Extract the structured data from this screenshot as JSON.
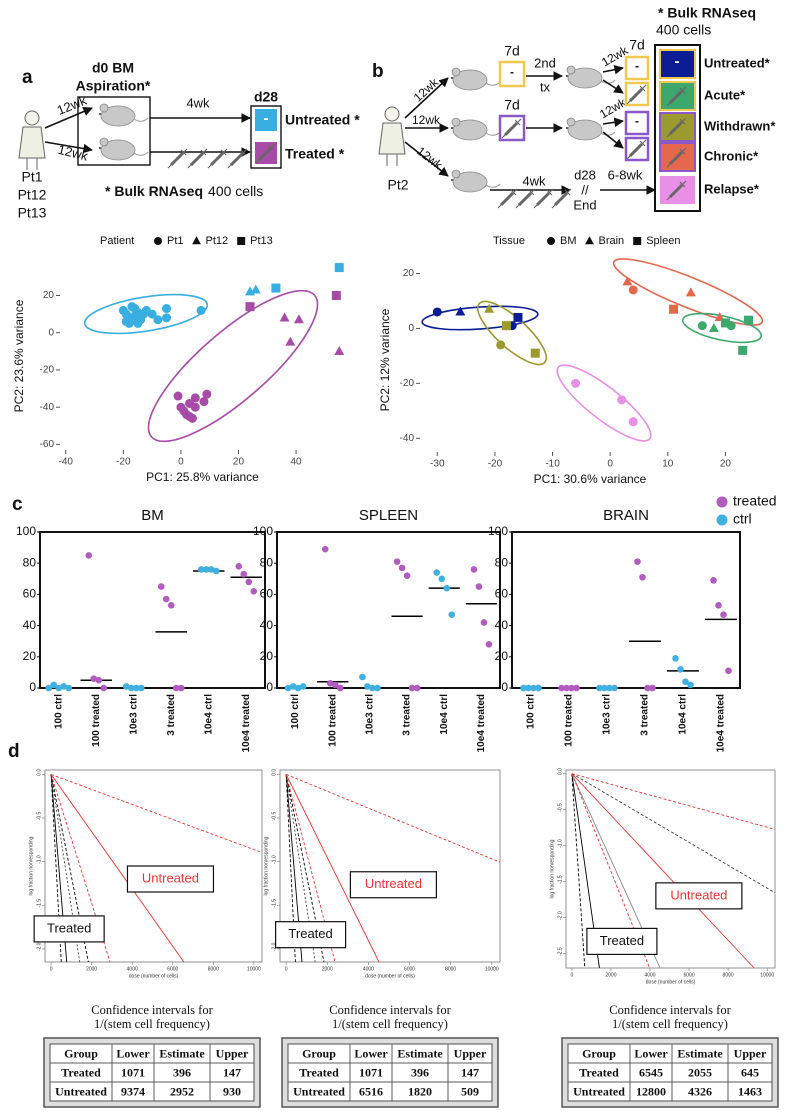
{
  "panel_labels": [
    "a",
    "b",
    "c",
    "d"
  ],
  "diagram_a": {
    "aspiration": [
      "d0 BM",
      "Aspiration*"
    ],
    "arrow_labels": [
      "12wk",
      "12wk"
    ],
    "patients": [
      "Pt1",
      "Pt12",
      "Pt13"
    ],
    "duration": "4wk",
    "day": "d28",
    "minus": "-",
    "groups": [
      "Untreated *",
      "Treated *"
    ],
    "note": [
      "* Bulk RNAseq",
      "400 cells"
    ]
  },
  "diagram_b": {
    "patient": "Pt2",
    "arrow_labels": [
      "12wk",
      "12wk",
      "12wk",
      "12wk",
      "12wk"
    ],
    "timepoints": [
      "7d",
      "7d",
      "7d"
    ],
    "second_tx": [
      "2nd",
      "tx"
    ],
    "duration": "4wk",
    "day": "d28",
    "break": "//",
    "end": "End",
    "interval": "6-8wk",
    "minus": "-",
    "note": [
      "* Bulk RNAseq",
      "400 cells"
    ],
    "groups": [
      "Untreated*",
      "Acute*",
      "Withdrawn*",
      "Chronic*",
      "Relapse*"
    ]
  },
  "chart_data": [
    {
      "type": "scatter",
      "xlabel": "PC1: 25.8% variance",
      "ylabel": "PC2: 23.6% variance",
      "xlim": [
        -42,
        57
      ],
      "xticks": [
        -40,
        -20,
        0,
        20,
        40
      ],
      "ylim": [
        -63,
        38
      ],
      "yticks": [
        -60,
        -40,
        -20,
        0,
        20
      ],
      "legend_title": "Patient",
      "series": [
        {
          "name": "Pt1",
          "marker": "circle",
          "x": [
            -20,
            -19,
            -18,
            -17,
            -16,
            -15,
            -18,
            -14,
            -13,
            -12,
            -19,
            -16,
            -10,
            -5,
            -5,
            -8,
            -17,
            -15,
            7,
            -1,
            3,
            5,
            8,
            9,
            1,
            3,
            5,
            4,
            2,
            0
          ],
          "values": [
            12,
            10,
            8,
            14,
            9,
            11,
            5,
            7,
            10,
            12,
            6,
            13,
            10,
            13,
            8,
            7,
            7,
            5,
            12,
            -34,
            -38,
            -35,
            -37,
            -33,
            -42,
            -45,
            -40,
            -46,
            -44,
            -40
          ],
          "colors": [
            "#39aee0",
            "#39aee0",
            "#39aee0",
            "#39aee0",
            "#39aee0",
            "#39aee0",
            "#39aee0",
            "#39aee0",
            "#39aee0",
            "#39aee0",
            "#39aee0",
            "#39aee0",
            "#39aee0",
            "#39aee0",
            "#39aee0",
            "#39aee0",
            "#39aee0",
            "#39aee0",
            "#39aee0",
            "#a64ca6",
            "#a64ca6",
            "#a64ca6",
            "#a64ca6",
            "#a64ca6",
            "#a64ca6",
            "#a64ca6",
            "#a64ca6",
            "#a64ca6",
            "#a64ca6",
            "#a64ca6"
          ]
        },
        {
          "name": "Pt12",
          "marker": "triangle",
          "x": [
            24,
            26,
            36,
            41,
            38,
            55
          ],
          "values": [
            22,
            23,
            8,
            7,
            -5,
            -10
          ],
          "colors": [
            "#39aee0",
            "#39aee0",
            "#a64ca6",
            "#a64ca6",
            "#a64ca6",
            "#a64ca6"
          ]
        },
        {
          "name": "Pt13",
          "marker": "square",
          "x": [
            33,
            55,
            24,
            54
          ],
          "values": [
            24,
            35,
            14,
            20
          ],
          "colors": [
            "#39aee0",
            "#39aee0",
            "#a64ca6",
            "#a64ca6"
          ]
        }
      ]
    },
    {
      "type": "scatter",
      "xlabel": "PC1: 30.6% variance",
      "ylabel": "PC2: 12% variance",
      "xlim": [
        -33,
        26
      ],
      "xticks": [
        -30,
        -20,
        -10,
        0,
        10,
        20
      ],
      "ylim": [
        -45,
        22
      ],
      "yticks": [
        -40,
        -20,
        0,
        20
      ],
      "legend_title": "Tissue",
      "series": [
        {
          "name": "BM",
          "marker": "circle",
          "x": [
            -30,
            -17,
            -19,
            -6,
            2,
            4,
            4,
            16,
            21
          ],
          "values": [
            6,
            1,
            -6,
            -20,
            -26,
            -34,
            14,
            1,
            1
          ],
          "colors": [
            "#0b1c94",
            "#0b1c94",
            "#9c9a2e",
            "#e88fe6",
            "#e88fe6",
            "#e88fe6",
            "#e5684e",
            "#3da86d",
            "#3da86d"
          ]
        },
        {
          "name": "Brain",
          "marker": "triangle",
          "x": [
            -26,
            -21,
            3,
            14,
            19,
            18
          ],
          "values": [
            6,
            7,
            17,
            13,
            4,
            0
          ],
          "colors": [
            "#0b1c94",
            "#9c9a2e",
            "#e5684e",
            "#e5684e",
            "#e5684e",
            "#3da86d"
          ]
        },
        {
          "name": "Spleen",
          "marker": "square",
          "x": [
            -16,
            -18,
            -13,
            11,
            20,
            24,
            23
          ],
          "values": [
            4,
            1,
            -9,
            7,
            2,
            3,
            -8
          ],
          "colors": [
            "#0b1c94",
            "#9c9a2e",
            "#9c9a2e",
            "#e5684e",
            "#3da86d",
            "#3da86d",
            "#3da86d"
          ]
        }
      ]
    },
    {
      "type": "dot",
      "title": "BM",
      "categories": [
        "100 ctrl",
        "100 treated",
        "10e3 ctrl",
        "3 treated",
        "10e4 ctrl",
        "10e4 treated"
      ],
      "ylim": [
        0,
        100
      ],
      "yticks": [
        0,
        20,
        40,
        60,
        80,
        100
      ],
      "means": [
        null,
        5,
        null,
        36,
        75,
        71
      ],
      "series": [
        {
          "name": "ctrl",
          "color": "#3fb0e0",
          "x": [
            "100 ctrl",
            "100 ctrl",
            "100 ctrl",
            "100 ctrl",
            "100 ctrl",
            "10e3 ctrl",
            "10e3 ctrl",
            "10e3 ctrl",
            "10e3 ctrl",
            "10e4 ctrl",
            "10e4 ctrl",
            "10e4 ctrl",
            "10e4 ctrl"
          ],
          "values": [
            0,
            2,
            0,
            1,
            0,
            1,
            0,
            0,
            0,
            76,
            76,
            76,
            75
          ]
        },
        {
          "name": "treated",
          "color": "#b25cc0",
          "x": [
            "100 treated",
            "100 treated",
            "100 treated",
            "100 treated",
            "3 treated",
            "3 treated",
            "3 treated",
            "3 treated",
            "3 treated",
            "10e4 treated",
            "10e4 treated",
            "10e4 treated",
            "10e4 treated"
          ],
          "values": [
            85,
            6,
            5,
            0,
            65,
            57,
            53,
            0,
            0,
            78,
            73,
            68,
            62
          ]
        }
      ]
    },
    {
      "type": "dot",
      "title": "SPLEEN",
      "categories": [
        "100 ctrl",
        "100 treated",
        "10e3 ctrl",
        "3 treated",
        "10e4 ctrl",
        "10e4 treated"
      ],
      "ylim": [
        0,
        100
      ],
      "yticks": [
        0,
        20,
        40,
        60,
        80,
        100
      ],
      "means": [
        null,
        4,
        null,
        46,
        64,
        54
      ],
      "series": [
        {
          "name": "ctrl",
          "color": "#3fb0e0",
          "x": [
            "100 ctrl",
            "100 ctrl",
            "100 ctrl",
            "100 ctrl",
            "10e3 ctrl",
            "10e3 ctrl",
            "10e3 ctrl",
            "10e3 ctrl",
            "10e4 ctrl",
            "10e4 ctrl",
            "10e4 ctrl",
            "10e4 ctrl"
          ],
          "values": [
            0,
            1,
            0,
            1,
            7,
            1,
            0,
            0,
            74,
            70,
            64,
            47
          ]
        },
        {
          "name": "treated",
          "color": "#b25cc0",
          "x": [
            "100 treated",
            "100 treated",
            "100 treated",
            "100 treated",
            "3 treated",
            "3 treated",
            "3 treated",
            "3 treated",
            "3 treated",
            "10e4 treated",
            "10e4 treated",
            "10e4 treated",
            "10e4 treated"
          ],
          "values": [
            89,
            3,
            2,
            0,
            81,
            77,
            72,
            0,
            0,
            76,
            65,
            42,
            28
          ]
        }
      ]
    },
    {
      "type": "dot",
      "title": "BRAIN",
      "legend": true,
      "categories": [
        "100 ctrl",
        "100 treated",
        "10e3 ctrl",
        "3 treated",
        "10e4 ctrl",
        "10e4 treated"
      ],
      "ylim": [
        0,
        100
      ],
      "yticks": [
        0,
        20,
        40,
        60,
        80,
        100
      ],
      "means": [
        null,
        null,
        null,
        30,
        11,
        44
      ],
      "series": [
        {
          "name": "treated",
          "color": "#b25cc0",
          "x": [
            "100 treated",
            "100 treated",
            "100 treated",
            "100 treated",
            "3 treated",
            "3 treated",
            "3 treated",
            "3 treated",
            "10e4 treated",
            "10e4 treated",
            "10e4 treated",
            "10e4 treated"
          ],
          "values": [
            0,
            0,
            0,
            0,
            81,
            71,
            0,
            0,
            69,
            53,
            47,
            11
          ]
        },
        {
          "name": "ctrl",
          "color": "#3fb0e0",
          "x": [
            "100 ctrl",
            "100 ctrl",
            "100 ctrl",
            "100 ctrl",
            "10e3 ctrl",
            "10e3 ctrl",
            "10e3 ctrl",
            "10e3 ctrl",
            "10e4 ctrl",
            "10e4 ctrl",
            "10e4 ctrl",
            "10e4 ctrl"
          ],
          "values": [
            0,
            0,
            0,
            0,
            0,
            0,
            0,
            0,
            19,
            12,
            4,
            2
          ]
        }
      ]
    },
    {
      "type": "ldl",
      "xlabel": "dose (number of cells)",
      "ylabel": "log fraction nonresponding",
      "xlim": [
        -300,
        10400
      ],
      "xticks": [
        0,
        2000,
        4000,
        6000,
        8000,
        10000
      ],
      "ylim": [
        -2.15,
        0.05
      ],
      "yticks": [
        {
          "value": 0,
          "label": "0.0"
        },
        -0.5,
        {
          "value": -1,
          "label": "-1.0"
        },
        -1.5,
        {
          "value": -2,
          "label": "-2.0"
        }
      ],
      "annotations": [
        "Untreated",
        "Treated"
      ]
    },
    {
      "type": "ldl",
      "xlabel": "dose (number of cells)",
      "ylabel": "log fraction nonresponding",
      "xlim": [
        -300,
        10400
      ],
      "xticks": [
        0,
        2000,
        4000,
        6000,
        8000,
        10000
      ],
      "ylim": [
        -2.15,
        0.05
      ],
      "yticks": [
        {
          "value": 0,
          "label": "0.0"
        },
        -0.5,
        {
          "value": -1,
          "label": "-1.0"
        },
        -1.5,
        {
          "value": -2,
          "label": "-2.0"
        }
      ],
      "annotations": [
        "Untreated",
        "Treated"
      ]
    },
    {
      "type": "ldl",
      "xlabel": "dose (number of cells)",
      "ylabel": "log fraction nonresponding",
      "xlim": [
        -300,
        10400
      ],
      "xticks": [
        0,
        2000,
        4000,
        6000,
        8000,
        10000
      ],
      "ylim": [
        -2.7,
        0.05
      ],
      "yticks": [
        {
          "value": 0,
          "label": "0.0"
        },
        -0.5,
        {
          "value": -1,
          "label": "-1.0"
        },
        -1.5,
        {
          "value": -2,
          "label": "-2.0"
        },
        -2.5
      ],
      "annotations": [
        "Untreated",
        "Treated"
      ]
    }
  ],
  "tables": [
    {
      "title": [
        "Confidence intervals for",
        "1/(stem cell frequency)"
      ],
      "header": [
        "Group",
        "Lower",
        "Estimate",
        "Upper"
      ],
      "rows": [
        [
          "Treated",
          1071,
          396,
          147
        ],
        [
          "Untreated",
          9374,
          2952,
          930
        ]
      ]
    },
    {
      "title": [
        "Confidence intervals for",
        "1/(stem cell frequency)"
      ],
      "header": [
        "Group",
        "Lower",
        "Estimate",
        "Upper"
      ],
      "rows": [
        [
          "Treated",
          1071,
          396,
          147
        ],
        [
          "Untreated",
          6516,
          1820,
          509
        ]
      ]
    },
    {
      "title": [
        "Confidence intervals for",
        "1/(stem cell frequency)"
      ],
      "header": [
        "Group",
        "Lower",
        "Estimate",
        "Upper"
      ],
      "rows": [
        [
          "Treated",
          6545,
          2055,
          645
        ],
        [
          "Untreated",
          12800,
          4326,
          1463
        ]
      ]
    }
  ]
}
